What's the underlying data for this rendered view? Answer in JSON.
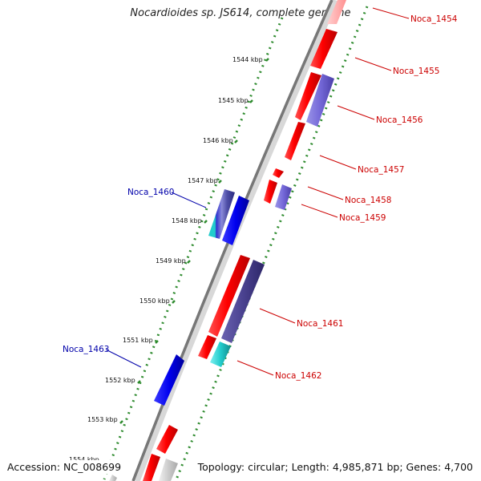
{
  "title": "Nocardioides sp. JS614, complete genome",
  "accession": "Accession: NC_008699",
  "summary": "Topology: circular; Length: 4,985,871 bp; Genes: 4,700",
  "colors": {
    "forward_label": "#cc0000",
    "reverse_label": "#0000aa",
    "tick_ring": "#2e8b2e",
    "backbone": "#777777"
  },
  "ticks": [
    "1544 kbp",
    "1545 kbp",
    "1546 kbp",
    "1547 kbp",
    "1548 kbp",
    "1549 kbp",
    "1550 kbp",
    "1551 kbp",
    "1552 kbp",
    "1553 kbp",
    "1554 kbp"
  ],
  "genes": [
    {
      "name": "Noca_1454",
      "strand": "forward"
    },
    {
      "name": "Noca_1455",
      "strand": "forward"
    },
    {
      "name": "Noca_1456",
      "strand": "forward"
    },
    {
      "name": "Noca_1457",
      "strand": "forward"
    },
    {
      "name": "Noca_1458",
      "strand": "forward"
    },
    {
      "name": "Noca_1459",
      "strand": "forward"
    },
    {
      "name": "Noca_1460",
      "strand": "reverse"
    },
    {
      "name": "Noca_1461",
      "strand": "forward"
    },
    {
      "name": "Noca_1462",
      "strand": "forward"
    },
    {
      "name": "Noca_1463",
      "strand": "reverse"
    }
  ]
}
